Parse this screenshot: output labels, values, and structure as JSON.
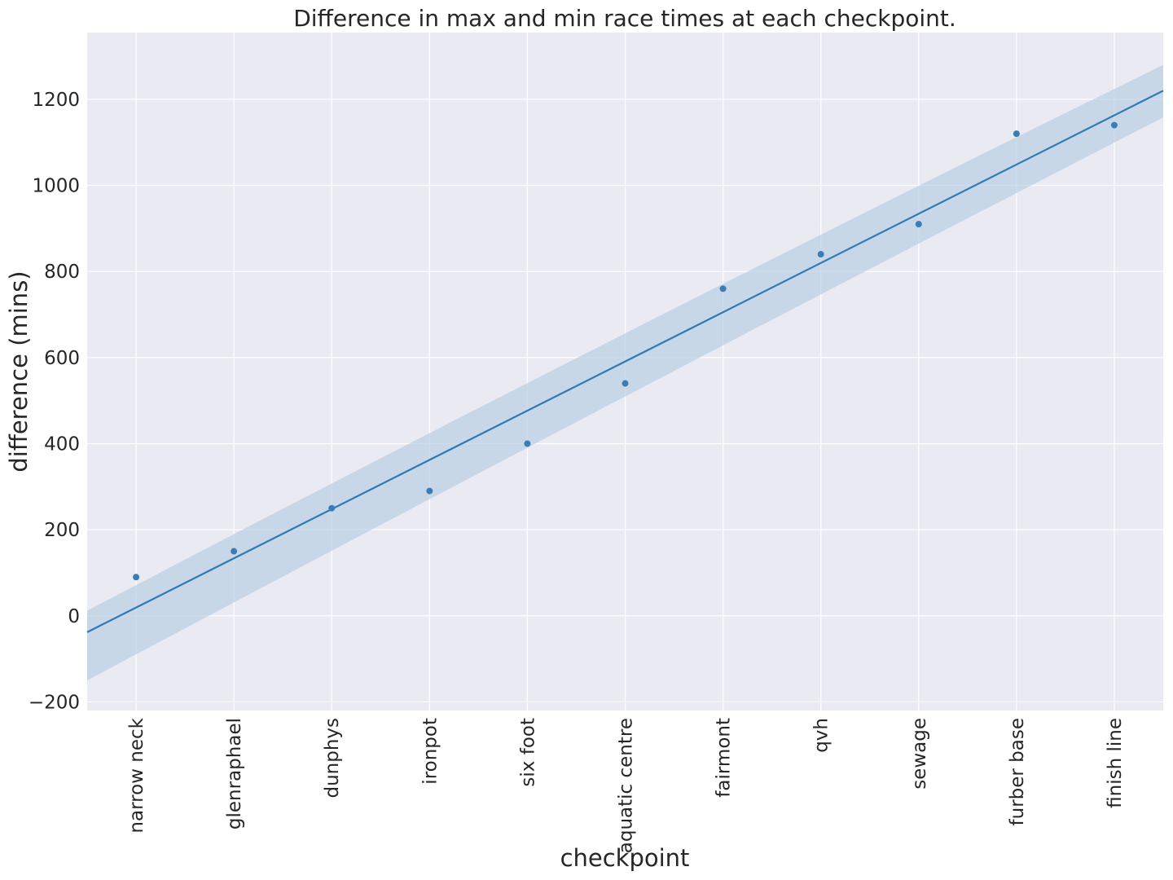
{
  "chart_data": {
    "type": "scatter",
    "title": "Difference in max and min race times at each checkpoint.",
    "xlabel": "checkpoint",
    "ylabel": "difference (mins)",
    "categories": [
      "narrow neck",
      "glenraphael",
      "dunphys",
      "ironpot",
      "six foot",
      "aquatic centre",
      "fairmont",
      "qvh",
      "sewage",
      "furber base",
      "finish line"
    ],
    "values": [
      90,
      150,
      250,
      290,
      400,
      540,
      760,
      840,
      910,
      1120,
      1140
    ],
    "y_ticks": [
      -200,
      0,
      200,
      400,
      600,
      800,
      1000,
      1200
    ],
    "y_tick_labels": [
      "−200",
      "0",
      "200",
      "400",
      "600",
      "800",
      "1000",
      "1200"
    ],
    "ylim": [
      -220,
      1355
    ],
    "x_index_range": [
      -0.5,
      10.5
    ],
    "regression": {
      "start": -38,
      "end": 1220,
      "ci_upper_start": 12,
      "ci_upper_end": 1280,
      "ci_lower_start": -150,
      "ci_lower_end": 1158
    },
    "grid": true,
    "colors": {
      "background": "#eaeaf2",
      "grid": "#ffffff",
      "line": "#2c7bb6",
      "points": "#3a7db5",
      "band": "#b9cfe4"
    }
  }
}
